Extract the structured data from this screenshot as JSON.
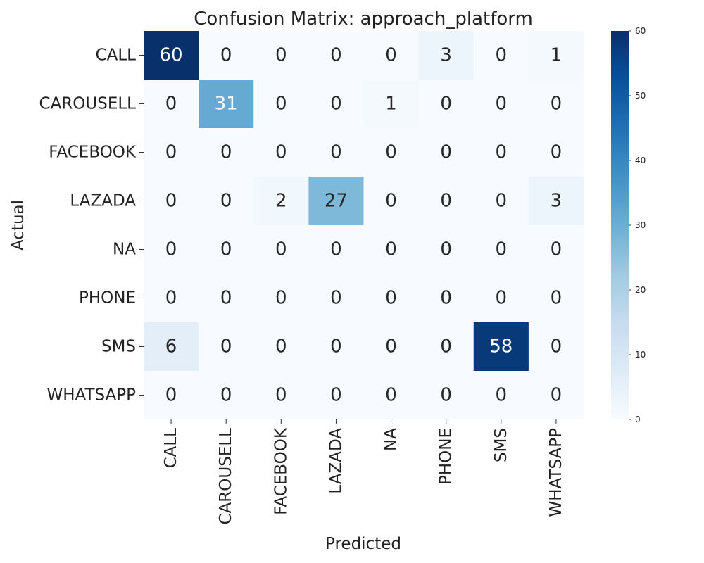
{
  "chart_data": {
    "type": "heatmap",
    "title": "Confusion Matrix: approach_platform",
    "xlabel": "Predicted",
    "ylabel": "Actual",
    "row_labels": [
      "CALL",
      "CAROUSELL",
      "FACEBOOK",
      "LAZADA",
      "NA",
      "PHONE",
      "SMS",
      "WHATSAPP"
    ],
    "col_labels": [
      "CALL",
      "CAROUSELL",
      "FACEBOOK",
      "LAZADA",
      "NA",
      "PHONE",
      "SMS",
      "WHATSAPP"
    ],
    "values": [
      [
        60,
        0,
        0,
        0,
        0,
        3,
        0,
        1
      ],
      [
        0,
        31,
        0,
        0,
        1,
        0,
        0,
        0
      ],
      [
        0,
        0,
        0,
        0,
        0,
        0,
        0,
        0
      ],
      [
        0,
        0,
        2,
        27,
        0,
        0,
        0,
        3
      ],
      [
        0,
        0,
        0,
        0,
        0,
        0,
        0,
        0
      ],
      [
        0,
        0,
        0,
        0,
        0,
        0,
        0,
        0
      ],
      [
        6,
        0,
        0,
        0,
        0,
        0,
        58,
        0
      ],
      [
        0,
        0,
        0,
        0,
        0,
        0,
        0,
        0
      ]
    ],
    "colorbar": {
      "range": [
        0,
        60
      ],
      "ticks": [
        0,
        10,
        20,
        30,
        40,
        50,
        60
      ],
      "colormap": "Blues",
      "low_color": "#f7fbff",
      "high_color": "#08306b"
    }
  }
}
